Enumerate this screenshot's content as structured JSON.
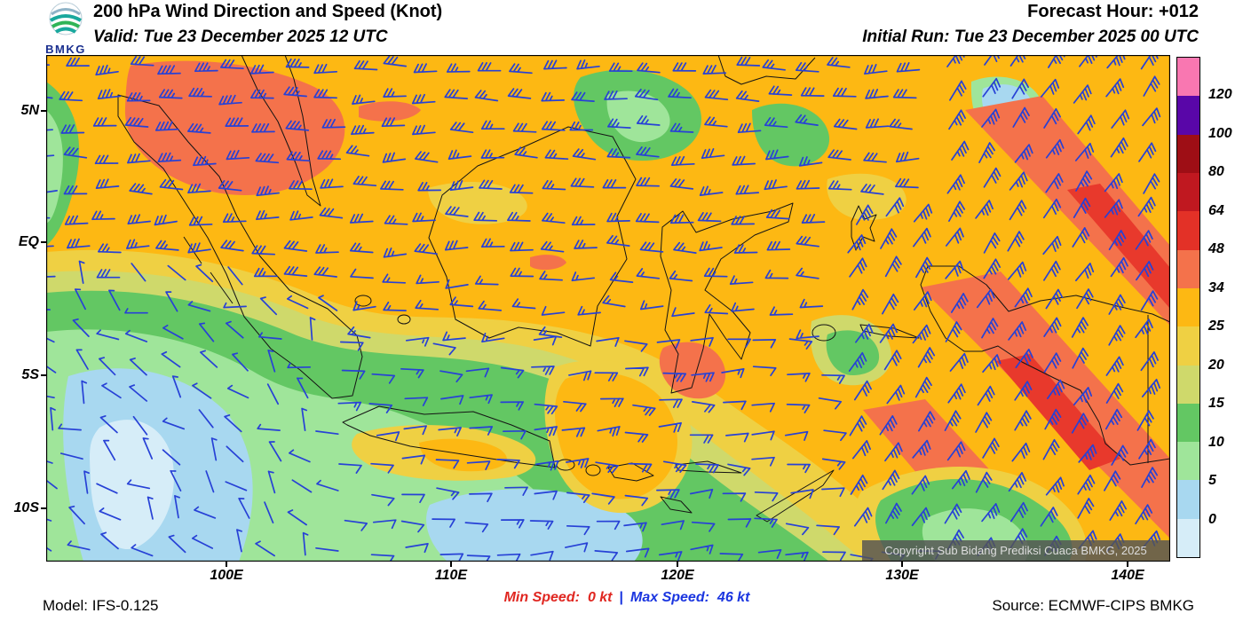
{
  "header": {
    "logo_text": "BMKG",
    "title": "200 hPa Wind Direction and Speed (Knot)",
    "valid": "Valid: Tue 23 December 2025 12 UTC",
    "forecast_hour": "Forecast Hour: +012",
    "initial_run": "Initial Run: Tue 23 December 2025 00 UTC"
  },
  "map": {
    "lat_labels": [
      "5N",
      "EQ",
      "5S",
      "10S"
    ],
    "lon_labels": [
      "100E",
      "110E",
      "120E",
      "130E",
      "140E"
    ],
    "copyright": "Copyright Sub Bidang Prediksi Cuaca BMKG, 2025"
  },
  "colorbar": {
    "labels": [
      "120",
      "100",
      "80",
      "64",
      "48",
      "34",
      "25",
      "20",
      "15",
      "10",
      "5",
      "0"
    ],
    "colors_top_to_bottom": [
      "#F977B1",
      "#5906A8",
      "#9E0E15",
      "#C01820",
      "#E33127",
      "#F4724B",
      "#FDB813",
      "#EFD043",
      "#CFD96B",
      "#63C763",
      "#9FE59A",
      "#A8D8F0",
      "#D6EDF8"
    ]
  },
  "footer": {
    "model": "Model: IFS-0.125",
    "min_speed_label": "Min Speed:",
    "min_speed_value": "0 kt",
    "separator": "|",
    "max_speed_label": "Max Speed:",
    "max_speed_value": "46 kt",
    "source": "Source: ECMWF-CIPS BMKG"
  },
  "chart_data": {
    "type": "heatmap",
    "title": "200 hPa Wind Direction and Speed (Knot)",
    "valid_time": "Tue 23 December 2025 12 UTC",
    "initial_run": "Tue 23 December 2025 00 UTC",
    "forecast_hour": "+012",
    "units": "knot",
    "min_speed_kt": 0,
    "max_speed_kt": 46,
    "model": "IFS-0.125",
    "source": "ECMWF-CIPS BMKG",
    "x_tick_labels": [
      "100E",
      "110E",
      "120E",
      "130E",
      "140E"
    ],
    "y_tick_labels": [
      "5N",
      "EQ",
      "5S",
      "10S"
    ],
    "speed_scale_kt": [
      0,
      5,
      10,
      15,
      20,
      25,
      34,
      48,
      64,
      80,
      100,
      120
    ],
    "legend_position": "right"
  }
}
